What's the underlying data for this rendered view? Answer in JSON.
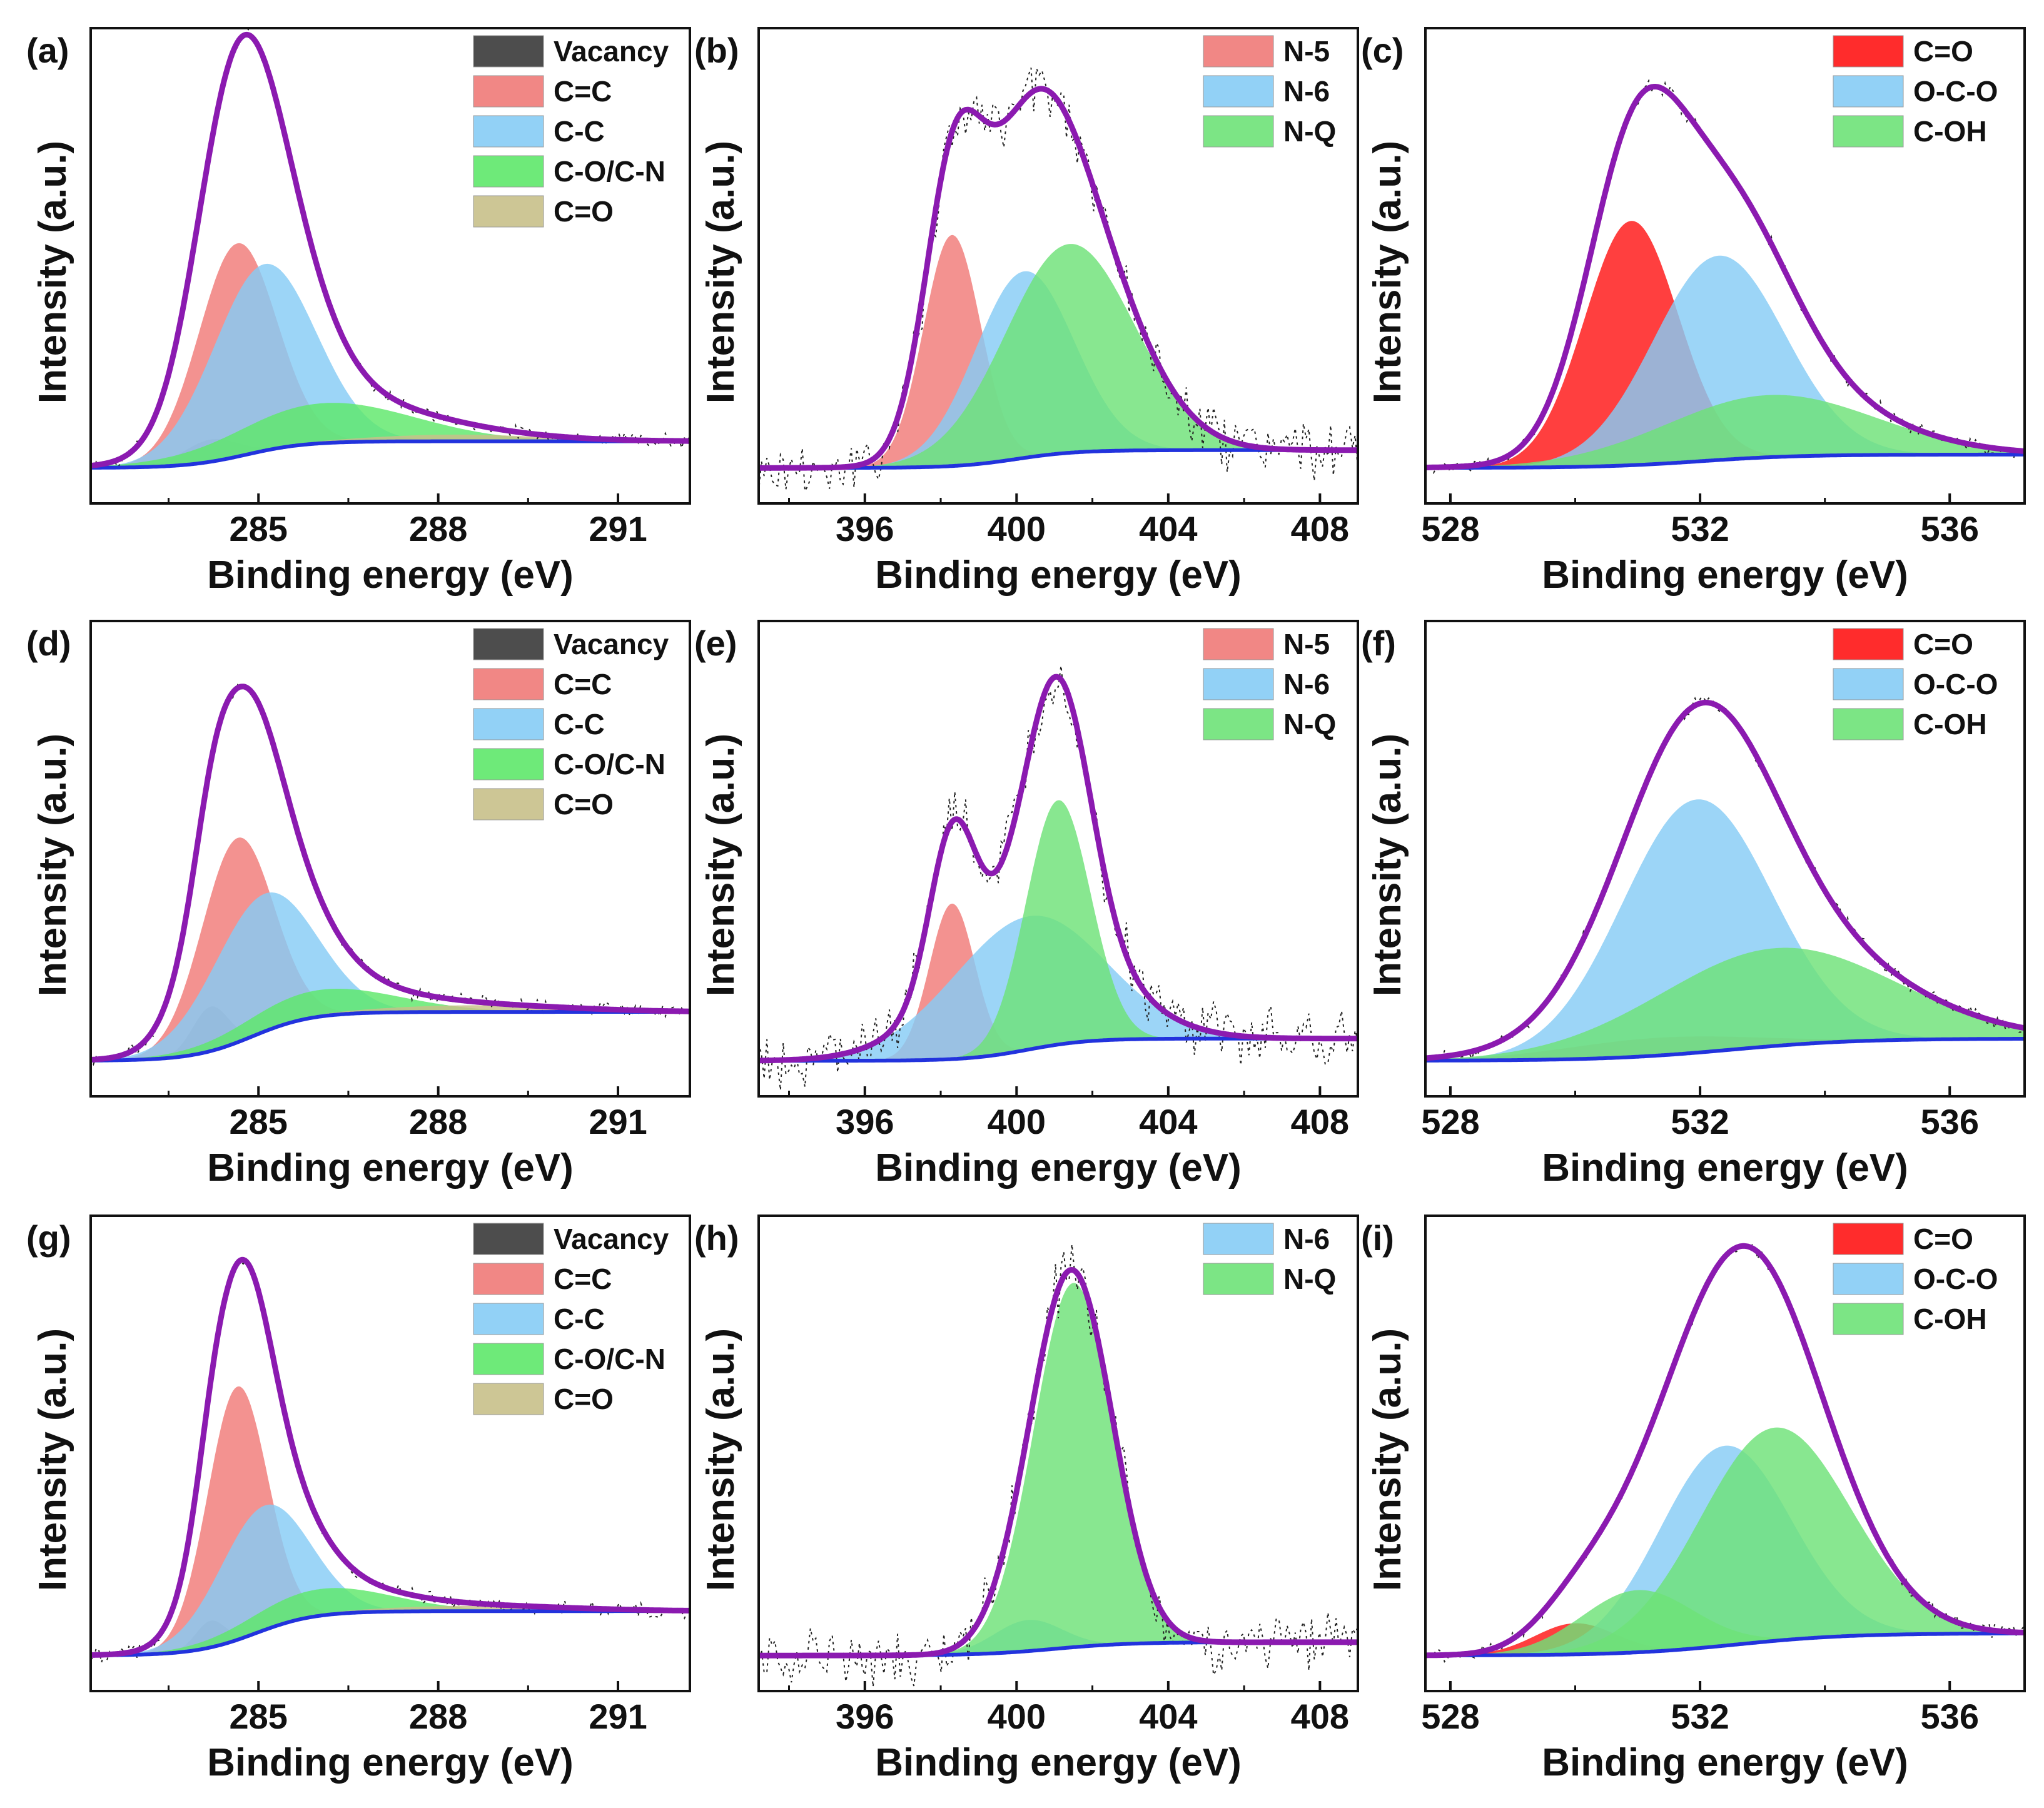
{
  "figure": {
    "colors": {
      "envelope": "#8B1AB0",
      "baseline": "#2233DD",
      "raw": "#222222",
      "Vacancy": "#3A3A3A",
      "C=C": "#F07A78",
      "C-C": "#86CCF5",
      "C-O/C-N": "#5EE86A",
      "C=O_C": "#C8C08A",
      "N-5": "#F07A78",
      "N-6": "#86CCF5",
      "N-Q": "#6EE278",
      "C=O_O": "#FF1515",
      "O-C-O": "#86CCF5",
      "C-OH": "#6EE278"
    }
  },
  "chart_data": [
    {
      "id": "a",
      "panel_label": "(a)",
      "type": "area",
      "xlabel": "Binding energy (eV)",
      "ylabel": "Intensity (a.u.)",
      "xlim": [
        282.2,
        292.2
      ],
      "ylim": [
        -0.05,
        1.02
      ],
      "xticks": [
        285,
        288,
        291
      ],
      "legend": [
        "Vacancy",
        "C=C",
        "C-C",
        "C-O/C-N",
        "C=O"
      ],
      "baseline": [
        0.03,
        0.06,
        284.8,
        0.5
      ],
      "series": [
        {
          "name": "Vacancy",
          "color_key": "Vacancy",
          "center": 284.2,
          "height": 0.05,
          "width": 0.45
        },
        {
          "name": "C=C",
          "color_key": "C=C",
          "center": 284.65,
          "height": 0.48,
          "width": 0.65
        },
        {
          "name": "C-C",
          "color_key": "C-C",
          "center": 285.1,
          "height": 0.42,
          "width": 0.85
        },
        {
          "name": "C-O/C-N",
          "color_key": "C-O/C-N",
          "center": 286.1,
          "height": 0.09,
          "width": 1.5
        },
        {
          "name": "C=O",
          "color_key": "C=O_C",
          "center": 288.3,
          "height": 0.015,
          "width": 1.5
        }
      ],
      "envelope_peak": 0.95
    },
    {
      "id": "b",
      "panel_label": "(b)",
      "type": "area",
      "xlabel": "Binding energy (eV)",
      "ylabel": "Intensity (a.u.)",
      "xlim": [
        393.2,
        409.0
      ],
      "ylim": [
        -0.05,
        1.02
      ],
      "xticks": [
        396,
        400,
        404,
        408
      ],
      "legend": [
        "N-5",
        "N-6",
        "N-Q"
      ],
      "baseline": [
        0.03,
        0.04,
        400.0,
        0.8
      ],
      "series": [
        {
          "name": "N-5",
          "color_key": "N-5",
          "center": 398.3,
          "height": 0.52,
          "width": 0.75
        },
        {
          "name": "N-6",
          "color_key": "N-6",
          "center": 400.2,
          "height": 0.42,
          "width": 1.3
        },
        {
          "name": "N-Q",
          "color_key": "N-Q",
          "center": 401.4,
          "height": 0.47,
          "width": 1.7
        }
      ],
      "envelope_peak": 0.74
    },
    {
      "id": "c",
      "panel_label": "(c)",
      "type": "area",
      "xlabel": "Binding energy (eV)",
      "ylabel": "Intensity (a.u.)",
      "xlim": [
        527.6,
        537.2
      ],
      "ylim": [
        -0.05,
        1.02
      ],
      "xticks": [
        528,
        532,
        536
      ],
      "legend": [
        "C=O",
        "O-C-O",
        "C-OH"
      ],
      "baseline": [
        0.03,
        0.03,
        532.0,
        0.8
      ],
      "series": [
        {
          "name": "C=O",
          "color_key": "C=O_O",
          "center": 530.9,
          "height": 0.55,
          "width": 0.75
        },
        {
          "name": "O-C-O",
          "color_key": "O-C-O",
          "center": 532.3,
          "height": 0.46,
          "width": 1.05
        },
        {
          "name": "C-OH",
          "color_key": "C-OH",
          "center": 533.1,
          "height": 0.14,
          "width": 1.7
        }
      ],
      "envelope_peak": 0.82
    },
    {
      "id": "d",
      "panel_label": "(d)",
      "type": "area",
      "xlabel": "Binding energy (eV)",
      "ylabel": "Intensity (a.u.)",
      "xlim": [
        282.2,
        292.2
      ],
      "ylim": [
        -0.05,
        1.02
      ],
      "xticks": [
        285,
        288,
        291
      ],
      "legend": [
        "Vacancy",
        "C=C",
        "C-C",
        "C-O/C-N",
        "C=O"
      ],
      "baseline": [
        0.03,
        0.11,
        284.9,
        0.5
      ],
      "series": [
        {
          "name": "Vacancy",
          "color_key": "Vacancy",
          "center": 284.2,
          "height": 0.1,
          "width": 0.3
        },
        {
          "name": "C=C",
          "color_key": "C=C",
          "center": 284.65,
          "height": 0.46,
          "width": 0.6
        },
        {
          "name": "C-C",
          "color_key": "C-C",
          "center": 285.1,
          "height": 0.31,
          "width": 0.85
        },
        {
          "name": "C-O/C-N",
          "color_key": "C-O/C-N",
          "center": 286.0,
          "height": 0.06,
          "width": 1.3
        },
        {
          "name": "C=O",
          "color_key": "C=O_C",
          "center": 288.6,
          "height": 0.015,
          "width": 1.6
        }
      ],
      "envelope_peak": 0.86
    },
    {
      "id": "e",
      "panel_label": "(e)",
      "type": "area",
      "xlabel": "Binding energy (eV)",
      "ylabel": "Intensity (a.u.)",
      "xlim": [
        393.2,
        409.0
      ],
      "ylim": [
        -0.05,
        1.02
      ],
      "xticks": [
        396,
        400,
        404,
        408
      ],
      "legend": [
        "N-5",
        "N-6",
        "N-Q"
      ],
      "baseline": [
        0.03,
        0.05,
        400.3,
        0.8
      ],
      "series": [
        {
          "name": "N-5",
          "color_key": "N-5",
          "center": 398.3,
          "height": 0.35,
          "width": 0.6
        },
        {
          "name": "N-6",
          "color_key": "N-6",
          "center": 400.3,
          "height": 0.3,
          "width": 2.0
        },
        {
          "name": "N-Q",
          "color_key": "N-Q",
          "center": 401.1,
          "height": 0.55,
          "width": 0.85
        }
      ],
      "envelope_peak": 0.92
    },
    {
      "id": "f",
      "panel_label": "(f)",
      "type": "area",
      "xlabel": "Binding energy (eV)",
      "ylabel": "Intensity (a.u.)",
      "xlim": [
        527.6,
        537.2
      ],
      "ylim": [
        -0.05,
        1.02
      ],
      "xticks": [
        528,
        532,
        536
      ],
      "legend": [
        "C=O",
        "O-C-O",
        "C-OH"
      ],
      "baseline": [
        0.03,
        0.05,
        532.5,
        1.0
      ],
      "series": [
        {
          "name": "C=O",
          "color_key": "C=O_O",
          "center": 531.3,
          "height": 0.04,
          "width": 1.5
        },
        {
          "name": "O-C-O",
          "color_key": "O-C-O",
          "center": 531.95,
          "height": 0.57,
          "width": 1.2
        },
        {
          "name": "C-OH",
          "color_key": "C-OH",
          "center": 533.2,
          "height": 0.22,
          "width": 1.9
        }
      ],
      "envelope_peak": 0.8
    },
    {
      "id": "g",
      "panel_label": "(g)",
      "type": "area",
      "xlabel": "Binding energy (eV)",
      "ylabel": "Intensity (a.u.)",
      "xlim": [
        282.2,
        292.2
      ],
      "ylim": [
        -0.05,
        1.02
      ],
      "xticks": [
        285,
        288,
        291
      ],
      "legend": [
        "Vacancy",
        "C=C",
        "C-C",
        "C-O/C-N",
        "C=O"
      ],
      "baseline": [
        0.03,
        0.1,
        284.95,
        0.5
      ],
      "series": [
        {
          "name": "Vacancy",
          "color_key": "Vacancy",
          "center": 284.2,
          "height": 0.06,
          "width": 0.25
        },
        {
          "name": "C=C",
          "color_key": "C=C",
          "center": 284.65,
          "height": 0.57,
          "width": 0.5
        },
        {
          "name": "C-C",
          "color_key": "C-C",
          "center": 285.1,
          "height": 0.28,
          "width": 0.75
        },
        {
          "name": "C-O/C-N",
          "color_key": "C-O/C-N",
          "center": 286.0,
          "height": 0.06,
          "width": 1.2
        },
        {
          "name": "C=O",
          "color_key": "C=O_C",
          "center": 288.6,
          "height": 0.012,
          "width": 1.6
        }
      ],
      "envelope_peak": 0.94
    },
    {
      "id": "h",
      "panel_label": "(h)",
      "type": "area",
      "xlabel": "Binding energy (eV)",
      "ylabel": "Intensity (a.u.)",
      "xlim": [
        393.2,
        409.0
      ],
      "ylim": [
        -0.05,
        1.02
      ],
      "xticks": [
        396,
        400,
        404,
        408
      ],
      "legend": [
        "N-6",
        "N-Q"
      ],
      "baseline": [
        0.03,
        0.03,
        401.0,
        1.0
      ],
      "series": [
        {
          "name": "N-6",
          "color_key": "N-6",
          "center": 400.3,
          "height": 0.07,
          "width": 0.9
        },
        {
          "name": "N-Q",
          "color_key": "N-Q",
          "center": 401.5,
          "height": 0.82,
          "width": 1.05
        }
      ],
      "envelope_peak": 0.87
    },
    {
      "id": "i",
      "panel_label": "(i)",
      "type": "area",
      "xlabel": "Binding energy (eV)",
      "ylabel": "Intensity (a.u.)",
      "xlim": [
        527.6,
        537.2
      ],
      "ylim": [
        -0.05,
        1.02
      ],
      "xticks": [
        528,
        532,
        536
      ],
      "legend": [
        "C=O",
        "O-C-O",
        "C-OH"
      ],
      "baseline": [
        0.03,
        0.05,
        532.6,
        0.9
      ],
      "series": [
        {
          "name": "C=O",
          "color_key": "C=O_O",
          "center": 530.0,
          "height": 0.07,
          "width": 0.65
        },
        {
          "name": "O-C-O",
          "color_key": "O-C-O",
          "center": 532.4,
          "height": 0.45,
          "width": 1.05
        },
        {
          "name": "C-OH",
          "color_key": "C-OH",
          "center": 533.2,
          "height": 0.48,
          "width": 1.2
        },
        {
          "name": "C-OH (shoulder)",
          "color_key": "C-OH",
          "center": 531.0,
          "height": 0.14,
          "width": 0.9
        }
      ],
      "envelope_peak": 0.95
    }
  ]
}
